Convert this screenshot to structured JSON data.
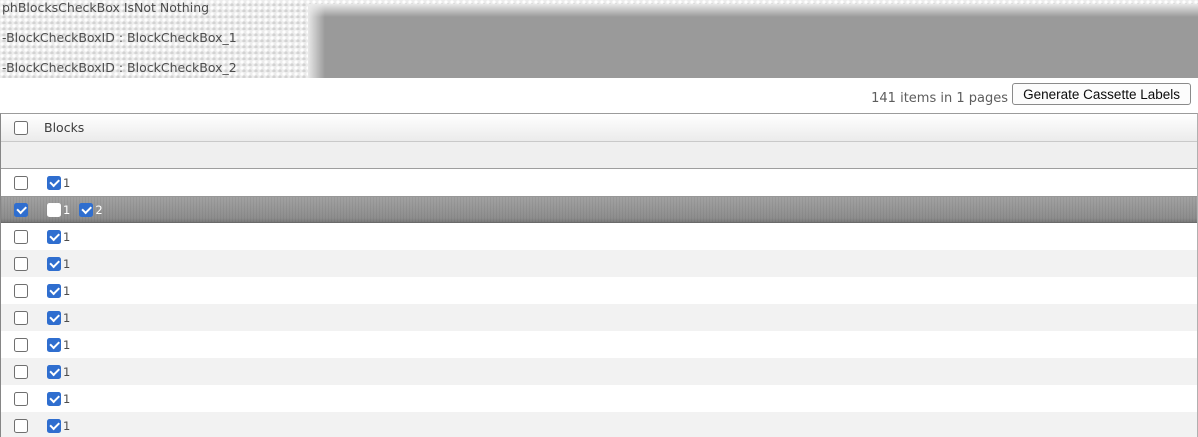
{
  "debug_panel": {
    "lines": [
      "phBlocksCheckBox IsNot Nothing",
      "-BlockCheckBoxID : BlockCheckBox_1",
      "-BlockCheckBoxID : BlockCheckBox_2"
    ]
  },
  "toolbar": {
    "items_summary": "141 items in 1 pages",
    "generate_button_label": "Generate Cassette Labels"
  },
  "grid": {
    "column_header": "Blocks",
    "select_all_checked": false,
    "rows": [
      {
        "selected": false,
        "checked": false,
        "blocks": [
          {
            "label": "1",
            "checked": true
          }
        ]
      },
      {
        "selected": true,
        "checked": true,
        "blocks": [
          {
            "label": "1",
            "checked": false
          },
          {
            "label": "2",
            "checked": true
          }
        ]
      },
      {
        "selected": false,
        "checked": false,
        "blocks": [
          {
            "label": "1",
            "checked": true
          }
        ]
      },
      {
        "selected": false,
        "checked": false,
        "blocks": [
          {
            "label": "1",
            "checked": true
          }
        ]
      },
      {
        "selected": false,
        "checked": false,
        "blocks": [
          {
            "label": "1",
            "checked": true
          }
        ]
      },
      {
        "selected": false,
        "checked": false,
        "blocks": [
          {
            "label": "1",
            "checked": true
          }
        ]
      },
      {
        "selected": false,
        "checked": false,
        "blocks": [
          {
            "label": "1",
            "checked": true
          }
        ]
      },
      {
        "selected": false,
        "checked": false,
        "blocks": [
          {
            "label": "1",
            "checked": true
          }
        ]
      },
      {
        "selected": false,
        "checked": false,
        "blocks": [
          {
            "label": "1",
            "checked": true
          }
        ]
      },
      {
        "selected": false,
        "checked": false,
        "blocks": [
          {
            "label": "1",
            "checked": true
          }
        ]
      }
    ]
  },
  "colors": {
    "checkbox_accent": "#2f6ecf",
    "selected_row_start": "#a3a3a3",
    "selected_row_end": "#8d8d8d",
    "overlay_box": "#9a9a9a"
  }
}
